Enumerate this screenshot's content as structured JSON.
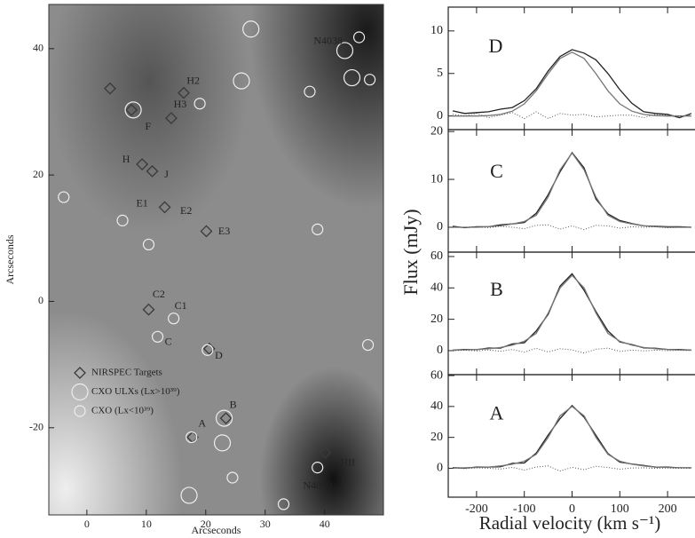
{
  "chart_data": [
    {
      "type": "image",
      "xlabel": "Arcseconds",
      "ylabel": "Arcseconds",
      "xlim": [
        -6.4,
        49.9
      ],
      "ylim": [
        -33.8,
        47
      ],
      "xticks": [
        0,
        10,
        20,
        30,
        40
      ],
      "yticks": [
        -20,
        0,
        20,
        40
      ],
      "series": [
        {
          "name": "NIRSPEC Targets",
          "marker": "diamond",
          "color": "#3a3a3a",
          "x": [
            3.9,
            7.5,
            14.2,
            16.3,
            9.3,
            11.0,
            13.1,
            20.1,
            10.4,
            20.6,
            23.4,
            17.8,
            40.1
          ],
          "y": [
            33.7,
            30.3,
            29.0,
            33.0,
            21.7,
            20.6,
            14.9,
            11.1,
            -1.3,
            -7.5,
            -18.5,
            -21.5,
            -23.9
          ]
        },
        {
          "name": "CXO ULXs (Lx>10³⁹)",
          "marker": "circle-large",
          "color": "#eeeeee",
          "x": [
            7.8,
            26.0,
            27.6,
            23.1,
            22.8,
            17.2,
            43.4,
            44.6
          ],
          "y": [
            30.3,
            34.9,
            43.1,
            -18.5,
            -22.4,
            -30.7,
            39.7,
            35.4
          ]
        },
        {
          "name": "CXO (Lx<10³⁹)",
          "marker": "circle-small",
          "color": "#eeeeee",
          "x": [
            -3.9,
            6.0,
            10.4,
            19.0,
            37.5,
            38.8,
            14.6,
            11.9,
            20.3,
            17.6,
            24.5,
            33.1,
            38.8,
            47.3,
            47.6,
            45.8
          ],
          "y": [
            16.5,
            12.8,
            9.0,
            31.3,
            33.2,
            11.4,
            -2.7,
            -5.6,
            -7.7,
            -21.5,
            -27.9,
            -32.1,
            -26.3,
            -6.9,
            35.1,
            41.8
          ]
        }
      ],
      "annotations": [
        {
          "text": "N4038",
          "x": 40.6,
          "y": 41.1
        },
        {
          "text": "H2",
          "x": 17.9,
          "y": 34.8
        },
        {
          "text": "H3",
          "x": 15.7,
          "y": 31.1
        },
        {
          "text": "F",
          "x": 10.3,
          "y": 27.6
        },
        {
          "text": "H",
          "x": 6.6,
          "y": 22.4
        },
        {
          "text": "J",
          "x": 13.4,
          "y": 20.0
        },
        {
          "text": "E1",
          "x": 9.3,
          "y": 15.4
        },
        {
          "text": "E2",
          "x": 16.7,
          "y": 14.2
        },
        {
          "text": "E3",
          "x": 23.1,
          "y": 11.0
        },
        {
          "text": "C2",
          "x": 12.1,
          "y": 1.0
        },
        {
          "text": "C1",
          "x": 15.8,
          "y": -0.8
        },
        {
          "text": "C",
          "x": 13.7,
          "y": -6.5
        },
        {
          "text": "D",
          "x": 22.2,
          "y": -8.7
        },
        {
          "text": "B",
          "x": 24.6,
          "y": -16.5
        },
        {
          "text": "A",
          "x": 19.4,
          "y": -19.4
        },
        {
          "text": "HII",
          "x": 43.9,
          "y": -25.6
        },
        {
          "text": "N4039",
          "x": 38.8,
          "y": -29.3
        }
      ]
    },
    {
      "type": "line",
      "xlabel": "Radial velocity (km s⁻¹)",
      "ylabel": "Flux (mJy)",
      "xlim": [
        -250,
        250
      ],
      "xticks": [
        -200,
        -100,
        0,
        100,
        200
      ],
      "x": [
        -250,
        -225,
        -200,
        -175,
        -150,
        -125,
        -100,
        -75,
        -50,
        -25,
        0,
        25,
        50,
        75,
        100,
        125,
        150,
        175,
        200,
        225,
        250
      ],
      "panels": [
        {
          "annotations": [
            {
              "text": "D",
              "x": -160,
              "y": 8
            }
          ],
          "ylim": [
            -1.6,
            12.8
          ],
          "yticks": [
            0,
            5,
            10
          ],
          "series": [
            {
              "color": "#222",
              "style": "solid",
              "values": [
                0.6,
                0.3,
                0.4,
                0.5,
                0.8,
                1.0,
                1.8,
                3.2,
                5.3,
                7.0,
                7.8,
                7.4,
                6.6,
                5.0,
                3.1,
                1.5,
                0.5,
                0.3,
                0.2,
                -0.2,
                0.3
              ]
            },
            {
              "color": "#777",
              "style": "solid",
              "values": [
                0,
                0,
                0,
                0.05,
                0.18,
                0.57,
                1.43,
                2.96,
                4.97,
                6.77,
                7.5,
                6.77,
                4.97,
                2.96,
                1.43,
                0.57,
                0.18,
                0.05,
                0,
                0,
                0
              ]
            },
            {
              "color": "#555",
              "style": "dotted",
              "values": [
                0.2,
                0,
                0.3,
                -0.2,
                0.1,
                0.4,
                -0.3,
                0.5,
                -0.3,
                0.3,
                0.1,
                0.2,
                -0.1,
                0,
                0.1,
                0.1,
                -0.2,
                0.2,
                0.1,
                0,
                0.1
              ]
            }
          ]
        },
        {
          "annotations": [
            {
              "text": "C",
              "x": -158,
              "y": 11.3
            }
          ],
          "ylim": [
            -5.2,
            20.4
          ],
          "yticks": [
            0,
            10,
            20
          ],
          "series": [
            {
              "color": "#222",
              "style": "solid",
              "values": [
                0.2,
                -0.1,
                0.1,
                0.1,
                0.5,
                0.7,
                1.0,
                2.9,
                6.8,
                11.6,
                15.6,
                12.4,
                5.9,
                2.8,
                1.4,
                0.8,
                0.3,
                0.2,
                0.1,
                0.1,
                0
              ]
            },
            {
              "color": "#777",
              "style": "solid",
              "values": [
                0,
                0,
                0,
                0.1,
                0.3,
                0.7,
                1.2,
                2.5,
                6.3,
                12.0,
                15.5,
                12.0,
                6.3,
                2.5,
                1.2,
                0.7,
                0.3,
                0.1,
                0,
                0,
                0
              ]
            },
            {
              "color": "#555",
              "style": "dotted",
              "values": [
                0,
                0,
                0.1,
                -0.1,
                0.2,
                0,
                -0.3,
                0.4,
                0.5,
                -0.4,
                0.3,
                -0.5,
                0.4,
                0.3,
                -0.2,
                0.1,
                0,
                0.1,
                -0.1,
                0,
                0
              ]
            }
          ]
        },
        {
          "annotations": [
            {
              "text": "B",
              "x": -158,
              "y": 37.9
            }
          ],
          "ylim": [
            -15.3,
            62.8
          ],
          "yticks": [
            0,
            20,
            40,
            60
          ],
          "series": [
            {
              "color": "#222",
              "style": "solid",
              "values": [
                0.3,
                0.8,
                0.6,
                1.7,
                1.6,
                4.3,
                5.0,
                12.5,
                23.2,
                41.2,
                49,
                38.5,
                24.9,
                12.6,
                5.5,
                3.9,
                1.8,
                1.5,
                0.8,
                0.7,
                0.3
              ]
            },
            {
              "color": "#777",
              "style": "solid",
              "values": [
                0.3,
                0.5,
                0.8,
                1.2,
                2,
                3.5,
                6,
                11,
                24,
                40,
                48,
                40,
                24,
                11,
                6,
                3.5,
                2,
                1.2,
                0.8,
                0.5,
                0.3
              ]
            },
            {
              "color": "#555",
              "style": "dotted",
              "values": [
                0,
                0.3,
                -0.2,
                0.5,
                -0.4,
                0.8,
                -1,
                1.5,
                -0.8,
                1.2,
                0.5,
                -1.5,
                0.9,
                1.6,
                -0.5,
                0.4,
                -0.2,
                0.3,
                0,
                0.2,
                0
              ]
            }
          ]
        },
        {
          "annotations": [
            {
              "text": "A",
              "x": -158,
              "y": 34.5
            }
          ],
          "ylim": [
            -18.7,
            60.6
          ],
          "yticks": [
            0,
            20,
            40,
            60
          ],
          "series": [
            {
              "color": "#222",
              "style": "solid",
              "values": [
                0.4,
                0.1,
                0.8,
                0.8,
                1.0,
                3.2,
                3.4,
                9.8,
                21.5,
                32.2,
                40.6,
                33.1,
                21.3,
                9.5,
                4.0,
                2.8,
                1.8,
                0.7,
                0.7,
                0.3,
                0.3
              ]
            },
            {
              "color": "#777",
              "style": "solid",
              "values": [
                0.2,
                0.3,
                0.5,
                0.8,
                1.5,
                2.6,
                4.6,
                9,
                20,
                34,
                40,
                34,
                20,
                9,
                4.6,
                2.6,
                1.5,
                0.8,
                0.5,
                0.3,
                0.2
              ]
            },
            {
              "color": "#555",
              "style": "dotted",
              "values": [
                0.2,
                -0.2,
                0.3,
                0,
                -0.5,
                0.6,
                -1.2,
                0.8,
                1.5,
                -1.8,
                0.6,
                -0.9,
                1.3,
                0.5,
                -0.6,
                0.2,
                0.3,
                -0.1,
                0.2,
                0,
                0.1
              ]
            }
          ]
        }
      ]
    }
  ]
}
